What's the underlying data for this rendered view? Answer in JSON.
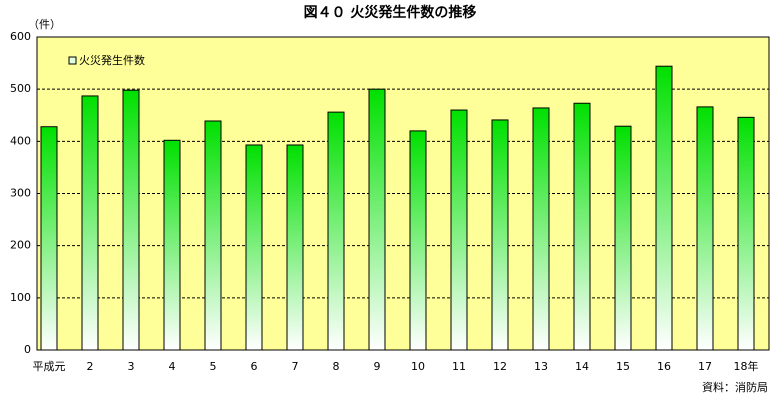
{
  "chart_data": {
    "type": "bar",
    "title": "図４０ 火災発生件数の推移",
    "y_unit": "（件）",
    "source": "資料：消防局",
    "categories": [
      "平成元",
      "2",
      "3",
      "4",
      "5",
      "6",
      "7",
      "8",
      "9",
      "10",
      "11",
      "12",
      "13",
      "14",
      "15",
      "16",
      "17",
      "18年"
    ],
    "series": [
      {
        "name": "火災発生件数",
        "color": "#00e000",
        "values": [
          428,
          487,
          498,
          402,
          439,
          393,
          393,
          456,
          500,
          420,
          460,
          441,
          464,
          473,
          429,
          544,
          466,
          446
        ]
      }
    ],
    "ylim": [
      0,
      600
    ],
    "yticks": [
      0,
      100,
      200,
      300,
      400,
      500,
      600
    ],
    "grid": true,
    "background": "#ffff99",
    "legend": "top-left"
  }
}
